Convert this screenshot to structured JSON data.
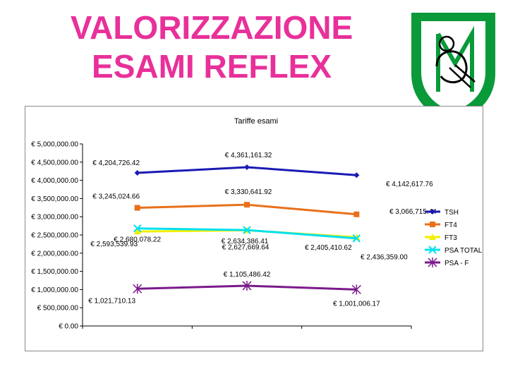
{
  "slide": {
    "title_line1": "VALORIZZAZIONE",
    "title_line2": "ESAMI REFLEX"
  },
  "colors": {
    "title": "#e8309a",
    "logo_green": "#0a9a3a"
  },
  "chart_data": {
    "type": "line",
    "title": "Tariffe esami",
    "xlabel": "",
    "ylabel": "",
    "categories": [
      "",
      "",
      ""
    ],
    "ylim": [
      0,
      5000000
    ],
    "yticks": [
      0,
      500000,
      1000000,
      1500000,
      2000000,
      2500000,
      3000000,
      3500000,
      4000000,
      4500000,
      5000000
    ],
    "ytick_labels": [
      "€ 0.00",
      "€ 500,000.00",
      "€ 1,000,000.00",
      "€ 1,500,000.00",
      "€ 2,000,000.00",
      "€ 2,500,000.00",
      "€ 3,000,000.00",
      "€ 3,500,000.00",
      "€ 4,000,000.00",
      "€ 4,500,000.00",
      "€ 5,000,000.00"
    ],
    "grid": false,
    "legend": "right",
    "series": [
      {
        "name": "TSH",
        "color": "#1a1ab4",
        "marker": "diamond",
        "values": [
          4204726.42,
          4361161.32,
          4142617.76
        ],
        "labels": [
          "€ 4,204,726.42",
          "€ 4,361,161.32",
          "€ 4,142,617.76"
        ]
      },
      {
        "name": "FT4",
        "color": "#e8701a",
        "marker": "square",
        "values": [
          3245024.66,
          3330641.92,
          3066715.44
        ],
        "labels": [
          "€ 3,245,024.66",
          "€ 3,330,641.92",
          "€ 3,066,715.44"
        ]
      },
      {
        "name": "FT3",
        "color": "#f0f000",
        "marker": "triangle",
        "values": [
          2593539.93,
          2627669.64,
          2436359.0
        ],
        "labels": [
          "€ 2,593,539.93",
          "€ 2,627,669.64",
          "€ 2,436,359.00"
        ]
      },
      {
        "name": "PSA TOTALE",
        "color": "#00e0f0",
        "marker": "x",
        "values": [
          2680078.22,
          2634386.41,
          2405410.62
        ],
        "labels": [
          "€ 2,680,078.22",
          "€ 2,634,386.41",
          "€ 2,405,410.62"
        ]
      },
      {
        "name": "PSA - F",
        "color": "#7a1a8a",
        "marker": "star",
        "values": [
          1021710.13,
          1105486.42,
          1001006.17
        ],
        "labels": [
          "€ 1,021,710.13",
          "€ 1,105,486.42",
          "€ 1,001,006.17"
        ]
      }
    ]
  }
}
